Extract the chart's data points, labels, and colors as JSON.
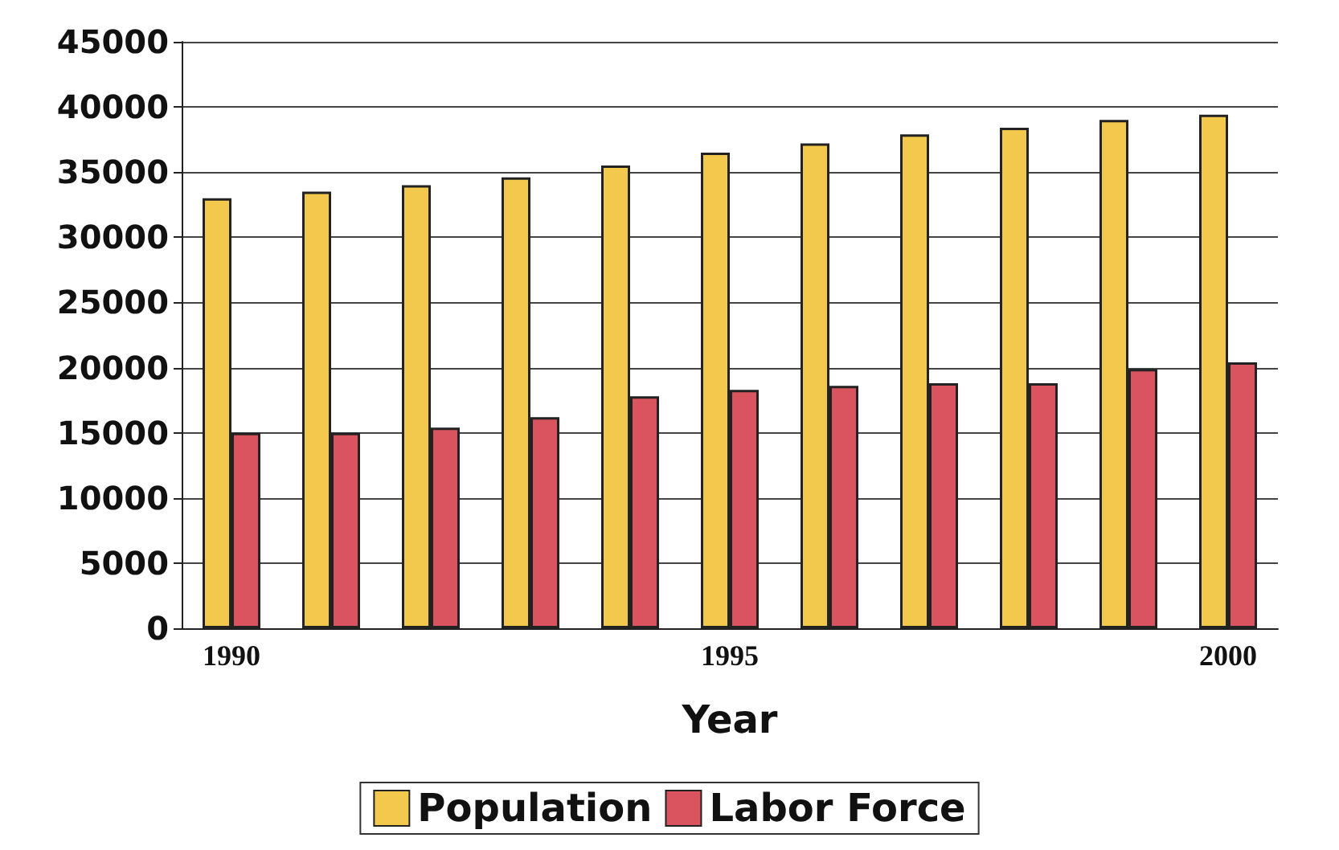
{
  "chart_data": {
    "type": "bar",
    "xlabel": "Year",
    "categories": [
      "1990",
      null,
      null,
      null,
      null,
      "1995",
      null,
      null,
      null,
      null,
      "2000"
    ],
    "series": [
      {
        "name": "Population",
        "color": "#f2c94c",
        "values": [
          33000,
          33500,
          34000,
          34600,
          35500,
          36500,
          37200,
          37900,
          38400,
          39000,
          39400
        ]
      },
      {
        "name": "Labor Force",
        "color": "#d9545f",
        "values": [
          15000,
          15000,
          15400,
          16200,
          17800,
          18300,
          18600,
          18800,
          18800,
          19900,
          20400
        ]
      }
    ],
    "ylim": [
      0,
      45000
    ],
    "yticks": [
      0,
      5000,
      10000,
      15000,
      20000,
      25000,
      30000,
      35000,
      40000,
      45000
    ],
    "grid": "y",
    "legend": "bottom"
  }
}
